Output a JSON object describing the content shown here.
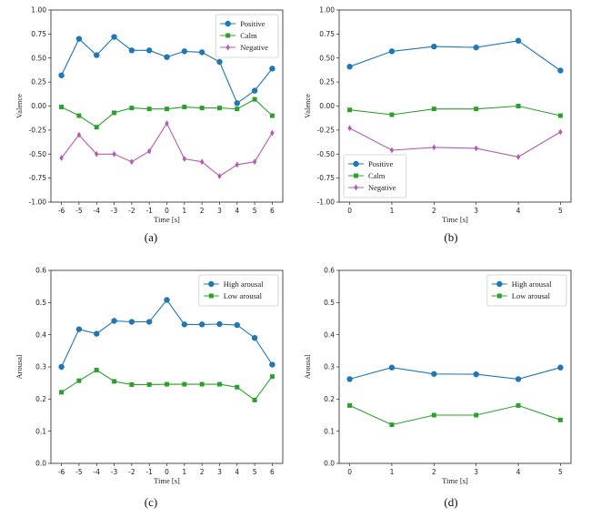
{
  "chart_data": [
    {
      "panel": "(a)",
      "type": "line",
      "caption": "(a)",
      "xlabel": "Time [s]",
      "ylabel": "Valence",
      "x": [
        -6,
        -5,
        -4,
        -3,
        -2,
        -1,
        0,
        1,
        2,
        3,
        4,
        5,
        6
      ],
      "xticks": [
        "-6",
        "-5",
        "-4",
        "-3",
        "-2",
        "-1",
        "0",
        "1",
        "2",
        "3",
        "4",
        "5",
        "6"
      ],
      "ylim": [
        -1.0,
        1.0
      ],
      "yticks": [
        "-1.00",
        "-0.75",
        "-0.50",
        "-0.25",
        "0.00",
        "0.25",
        "0.50",
        "0.75",
        "1.00"
      ],
      "legend_position": "top-right",
      "series": [
        {
          "name": "Positive",
          "color": "#1f77b4",
          "marker": "circle",
          "values": [
            0.32,
            0.7,
            0.53,
            0.72,
            0.58,
            0.58,
            0.51,
            0.57,
            0.56,
            0.46,
            0.03,
            0.16,
            0.39
          ]
        },
        {
          "name": "Calm",
          "color": "#2ca02c",
          "marker": "square",
          "values": [
            -0.01,
            -0.1,
            -0.22,
            -0.07,
            -0.02,
            -0.03,
            -0.03,
            -0.01,
            -0.02,
            -0.02,
            -0.03,
            0.07,
            -0.1
          ]
        },
        {
          "name": "Negative",
          "color": "#b55cb0",
          "marker": "diamond",
          "values": [
            -0.54,
            -0.3,
            -0.5,
            -0.5,
            -0.58,
            -0.47,
            -0.18,
            -0.55,
            -0.58,
            -0.73,
            -0.61,
            -0.58,
            -0.28
          ]
        }
      ]
    },
    {
      "panel": "(b)",
      "type": "line",
      "caption": "(b)",
      "xlabel": "Time [s]",
      "ylabel": "Valence",
      "x": [
        0,
        1,
        2,
        3,
        4,
        5
      ],
      "xticks": [
        "0",
        "1",
        "2",
        "3",
        "4",
        "5"
      ],
      "ylim": [
        -1.0,
        1.0
      ],
      "yticks": [
        "-1.00",
        "-0.75",
        "-0.50",
        "-0.25",
        "0.00",
        "0.25",
        "0.50",
        "0.75",
        "1.00"
      ],
      "legend_position": "bottom-left",
      "series": [
        {
          "name": "Positive",
          "color": "#1f77b4",
          "marker": "circle",
          "values": [
            0.41,
            0.57,
            0.62,
            0.61,
            0.68,
            0.37
          ]
        },
        {
          "name": "Calm",
          "color": "#2ca02c",
          "marker": "square",
          "values": [
            -0.04,
            -0.09,
            -0.03,
            -0.03,
            0.0,
            -0.1
          ]
        },
        {
          "name": "Negative",
          "color": "#b55cb0",
          "marker": "diamond",
          "values": [
            -0.23,
            -0.46,
            -0.43,
            -0.44,
            -0.53,
            -0.27
          ]
        }
      ]
    },
    {
      "panel": "(c)",
      "type": "line",
      "caption": "(c)",
      "xlabel": "Time [s]",
      "ylabel": "Arousal",
      "x": [
        -6,
        -5,
        -4,
        -3,
        -2,
        -1,
        0,
        1,
        2,
        3,
        4,
        5,
        6
      ],
      "xticks": [
        "-6",
        "-5",
        "-4",
        "-3",
        "-2",
        "-1",
        "0",
        "1",
        "2",
        "3",
        "4",
        "5",
        "6"
      ],
      "ylim": [
        0.0,
        0.6
      ],
      "yticks": [
        "0.0",
        "0.1",
        "0.2",
        "0.3",
        "0.4",
        "0.5",
        "0.6"
      ],
      "legend_position": "top-right",
      "series": [
        {
          "name": "High arousal",
          "color": "#1f77b4",
          "marker": "circle",
          "values": [
            0.3,
            0.417,
            0.403,
            0.443,
            0.44,
            0.44,
            0.508,
            0.432,
            0.432,
            0.433,
            0.43,
            0.39,
            0.307
          ]
        },
        {
          "name": "Low arousal",
          "color": "#2ca02c",
          "marker": "square",
          "values": [
            0.221,
            0.257,
            0.29,
            0.255,
            0.245,
            0.245,
            0.246,
            0.246,
            0.246,
            0.246,
            0.237,
            0.197,
            0.27
          ]
        }
      ]
    },
    {
      "panel": "(d)",
      "type": "line",
      "caption": "(d)",
      "xlabel": "Time [s]",
      "ylabel": "Arousal",
      "x": [
        0,
        1,
        2,
        3,
        4,
        5
      ],
      "xticks": [
        "0",
        "1",
        "2",
        "3",
        "4",
        "5"
      ],
      "ylim": [
        0.0,
        0.6
      ],
      "yticks": [
        "0.0",
        "0.1",
        "0.2",
        "0.3",
        "0.4",
        "0.5",
        "0.6"
      ],
      "legend_position": "top-right",
      "series": [
        {
          "name": "High arousal",
          "color": "#1f77b4",
          "marker": "circle",
          "values": [
            0.262,
            0.298,
            0.278,
            0.277,
            0.262,
            0.298
          ]
        },
        {
          "name": "Low arousal",
          "color": "#2ca02c",
          "marker": "square",
          "values": [
            0.18,
            0.12,
            0.15,
            0.15,
            0.18,
            0.135
          ]
        }
      ]
    }
  ]
}
